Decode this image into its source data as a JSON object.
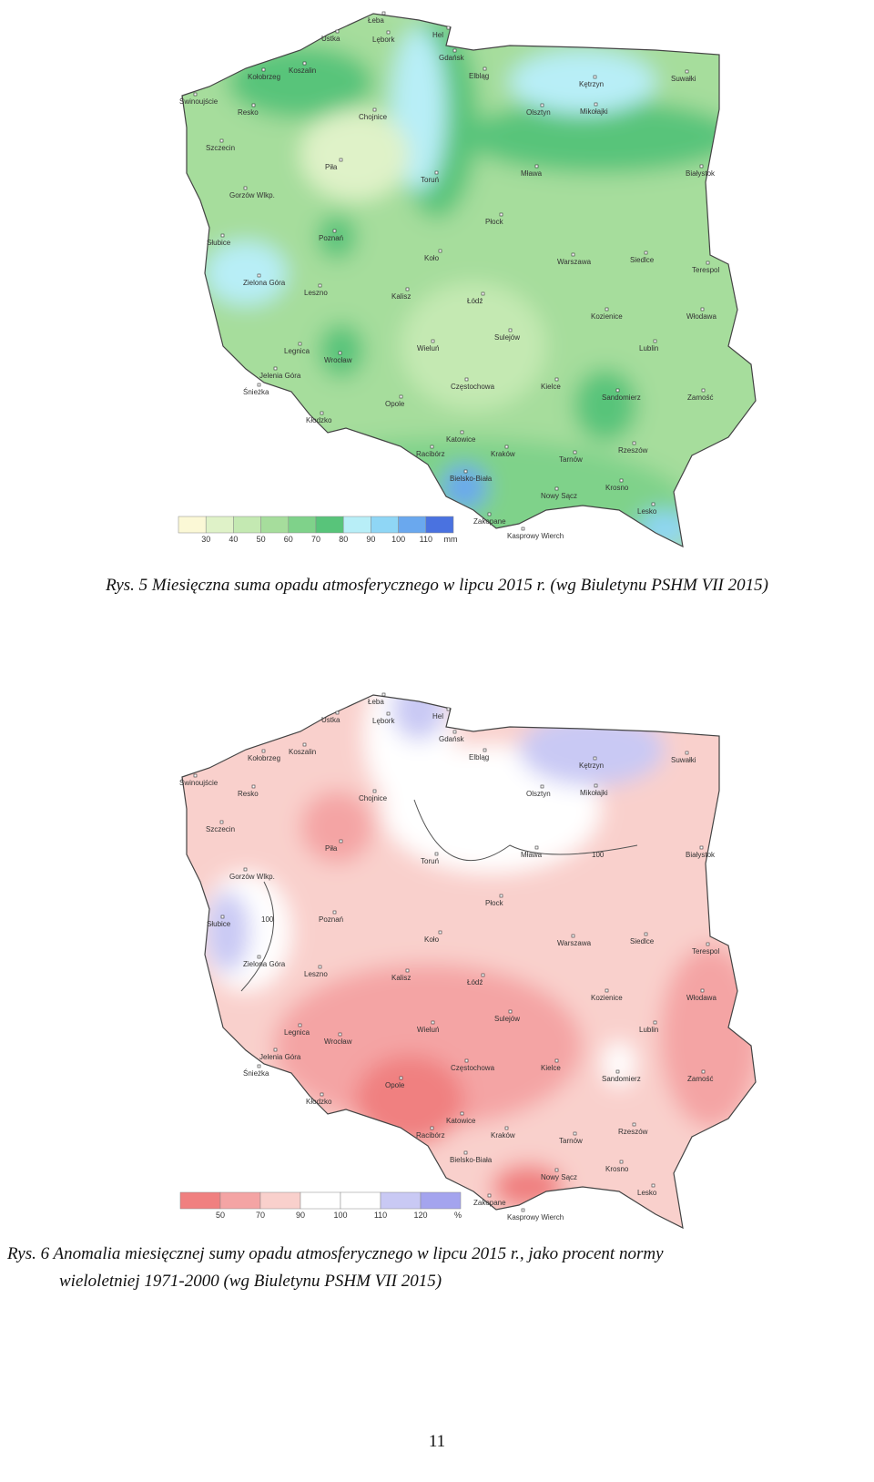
{
  "figures": [
    {
      "cities": [
        "Łeba",
        "Hel",
        "Ustka",
        "Lębork",
        "Gdańsk",
        "Koszalin",
        "Elbląg",
        "Kętrzyn",
        "Suwałki",
        "Kołobrzeg",
        "Świnoujście",
        "Resko",
        "Chojnice",
        "Olsztyn",
        "Mikołajki",
        "Szczecin",
        "Piła",
        "Toruń",
        "Mława",
        "Białystok",
        "Gorzów Wlkp.",
        "Płock",
        "Poznań",
        "Słubice",
        "Koło",
        "Warszawa",
        "Siedlce",
        "Terespol",
        "Zielona Góra",
        "Leszno",
        "Kalisz",
        "Łódź",
        "Kozienice",
        "Włodawa",
        "Sulejów",
        "Legnica",
        "Wieluń",
        "Lublin",
        "Wrocław",
        "Jelenia Góra",
        "Śnieżka",
        "Częstochowa",
        "Kielce",
        "Sandomierz",
        "Zamość",
        "Opole",
        "Kłodzko",
        "Katowice",
        "Rzeszów",
        "Racibórz",
        "Kraków",
        "Tarnów",
        "Bielsko-Biała",
        "Krosno",
        "Nowy Sącz",
        "Lesko",
        "Zakopane",
        "Kasprowy Wierch"
      ],
      "legend": {
        "ticks": [
          30,
          40,
          50,
          60,
          70,
          80,
          90,
          100,
          110
        ],
        "unit": "mm",
        "colors": [
          "#fbf8d6",
          "#dff2c8",
          "#c4e9b2",
          "#a6dd9c",
          "#7fd28a",
          "#58c47a",
          "#b8eef7",
          "#8fd6f5",
          "#6aa8ee",
          "#4a72e0"
        ]
      },
      "caption": [
        "Rys. 5 Miesięczna suma opadu atmosferycznego w lipcu 2015 r. (wg Biuletynu PSHM VII 2015)"
      ]
    },
    {
      "cities": [
        "Łeba",
        "Hel",
        "Ustka",
        "Lębork",
        "Gdańsk",
        "Koszalin",
        "Elbląg",
        "Kętrzyn",
        "Suwałki",
        "Kołobrzeg",
        "Świnoujście",
        "Resko",
        "Chojnice",
        "Olsztyn",
        "Mikołajki",
        "Szczecin",
        "Piła",
        "Toruń",
        "Mława",
        "Białystok",
        "Gorzów Wlkp.",
        "Płock",
        "Poznań",
        "Słubice",
        "Koło",
        "Warszawa",
        "Siedlce",
        "Terespol",
        "Zielona Góra",
        "Leszno",
        "Kalisz",
        "Łódź",
        "Kozienice",
        "Włodawa",
        "Sulejów",
        "Legnica",
        "Wieluń",
        "Lublin",
        "Wrocław",
        "Jelenia Góra",
        "Śnieżka",
        "Częstochowa",
        "Kielce",
        "Sandomierz",
        "Zamość",
        "Opole",
        "Kłodzko",
        "Katowice",
        "Rzeszów",
        "Racibórz",
        "Kraków",
        "Tarnów",
        "Bielsko-Biała",
        "Krosno",
        "Nowy Sącz",
        "Lesko",
        "Zakopane",
        "Kasprowy Wierch"
      ],
      "isolines": [
        "100",
        "100"
      ],
      "legend": {
        "ticks": [
          50,
          70,
          90,
          100,
          110,
          120
        ],
        "unit": "%",
        "colors": [
          "#f08080",
          "#f4a4a4",
          "#f9d0cc",
          "#ffffff",
          "#ffffff",
          "#c9c9f4",
          "#a4a4ee"
        ]
      },
      "caption": [
        "Rys. 6 Anomalia miesięcznej sumy opadu atmosferycznego w lipcu 2015 r., jako procent normy",
        "wieloletniej 1971-2000 (wg Biuletynu PSHM VII 2015)"
      ]
    }
  ],
  "page_number": "11"
}
